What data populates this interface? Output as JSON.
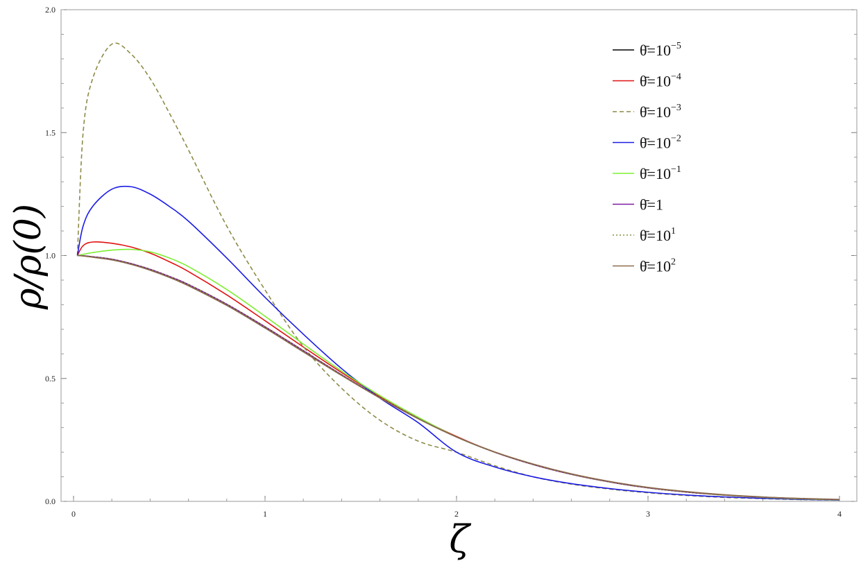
{
  "chart_data": {
    "type": "line",
    "xlabel": "ζ",
    "ylabel": "ρ/ρ(0)",
    "xlim": [
      0,
      4
    ],
    "ylim": [
      0,
      2
    ],
    "x_ticks": [
      0,
      1,
      2,
      3,
      4
    ],
    "y_ticks": [
      0.0,
      0.5,
      1.0,
      1.5,
      2.0
    ],
    "x_tick_labels": [
      "0",
      "1",
      "2",
      "3",
      "4"
    ],
    "y_tick_labels": [
      "0.0",
      "0.5",
      "1.0",
      "1.5",
      "2.0"
    ],
    "legend_position": "top-right",
    "grid": false,
    "x": [
      0.02,
      0.05,
      0.1,
      0.2,
      0.3,
      0.4,
      0.5,
      0.6,
      0.8,
      1.0,
      1.2,
      1.4,
      1.6,
      1.8,
      2.0,
      2.2,
      2.4,
      2.6,
      2.8,
      3.0,
      3.2,
      3.4,
      3.6,
      3.8,
      4.0
    ],
    "series": [
      {
        "name": "θ̄=10^−5",
        "base": "θ̄=10",
        "sup": "−5",
        "color": "#000000",
        "dash": "none",
        "values": [
          1.0,
          0.999,
          0.995,
          0.985,
          0.967,
          0.944,
          0.915,
          0.882,
          0.802,
          0.71,
          0.613,
          0.515,
          0.422,
          0.337,
          0.262,
          0.2,
          0.15,
          0.11,
          0.079,
          0.055,
          0.038,
          0.026,
          0.017,
          0.011,
          0.007
        ]
      },
      {
        "name": "θ̄=10^−4",
        "base": "θ̄=10",
        "sup": "−4",
        "color": "#e01010",
        "dash": "none",
        "values": [
          1.0,
          1.04,
          1.055,
          1.05,
          1.035,
          1.01,
          0.975,
          0.935,
          0.84,
          0.735,
          0.628,
          0.524,
          0.427,
          0.34,
          0.264,
          0.2,
          0.15,
          0.11,
          0.079,
          0.055,
          0.038,
          0.025,
          0.016,
          0.01,
          0.006
        ]
      },
      {
        "name": "θ̄=10^−3",
        "base": "θ̄=10",
        "sup": "−3",
        "color": "#8c8a46",
        "dash": "6,4",
        "values": [
          1.0,
          1.5,
          1.72,
          1.86,
          1.82,
          1.72,
          1.58,
          1.43,
          1.12,
          0.86,
          0.63,
          0.46,
          0.33,
          0.245,
          0.2,
          0.145,
          0.1,
          0.07,
          0.05,
          0.035,
          0.024,
          0.016,
          0.011,
          0.007,
          0.005
        ]
      },
      {
        "name": "θ̄=10^−2",
        "base": "θ̄=10",
        "sup": "−2",
        "color": "#1a1ae6",
        "dash": "none",
        "values": [
          1.0,
          1.12,
          1.2,
          1.27,
          1.28,
          1.25,
          1.2,
          1.14,
          0.99,
          0.83,
          0.68,
          0.54,
          0.42,
          0.32,
          0.2,
          0.14,
          0.1,
          0.072,
          0.052,
          0.037,
          0.026,
          0.018,
          0.012,
          0.008,
          0.005
        ]
      },
      {
        "name": "θ̄=10^−1",
        "base": "θ̄=10",
        "sup": "−1",
        "color": "#7cf02e",
        "dash": "none",
        "values": [
          1.0,
          1.005,
          1.012,
          1.022,
          1.025,
          1.015,
          0.99,
          0.955,
          0.862,
          0.753,
          0.64,
          0.53,
          0.43,
          0.342,
          0.262,
          0.2,
          0.15,
          0.11,
          0.079,
          0.055,
          0.038,
          0.025,
          0.016,
          0.01,
          0.006
        ]
      },
      {
        "name": "θ̄=1",
        "base": "θ̄=1",
        "sup": "",
        "color": "#7a1aa0",
        "dash": "none",
        "values": [
          1.0,
          0.999,
          0.995,
          0.985,
          0.967,
          0.944,
          0.915,
          0.882,
          0.802,
          0.71,
          0.613,
          0.515,
          0.422,
          0.337,
          0.262,
          0.2,
          0.15,
          0.11,
          0.079,
          0.055,
          0.038,
          0.026,
          0.017,
          0.011,
          0.007
        ]
      },
      {
        "name": "θ̄=10^1",
        "base": "θ̄=10",
        "sup": "1",
        "color": "#8c8a46",
        "dash": "2,3",
        "values": [
          1.0,
          0.999,
          0.995,
          0.985,
          0.967,
          0.944,
          0.915,
          0.882,
          0.802,
          0.71,
          0.613,
          0.515,
          0.422,
          0.337,
          0.262,
          0.2,
          0.15,
          0.11,
          0.079,
          0.055,
          0.038,
          0.026,
          0.017,
          0.011,
          0.007
        ]
      },
      {
        "name": "θ̄=10^2",
        "base": "θ̄=10",
        "sup": "2",
        "color": "#8a6a4a",
        "dash": "none",
        "values": [
          1.0,
          0.998,
          0.993,
          0.982,
          0.964,
          0.94,
          0.911,
          0.877,
          0.797,
          0.705,
          0.608,
          0.512,
          0.42,
          0.336,
          0.262,
          0.201,
          0.152,
          0.112,
          0.081,
          0.057,
          0.04,
          0.027,
          0.018,
          0.012,
          0.008
        ]
      }
    ]
  }
}
